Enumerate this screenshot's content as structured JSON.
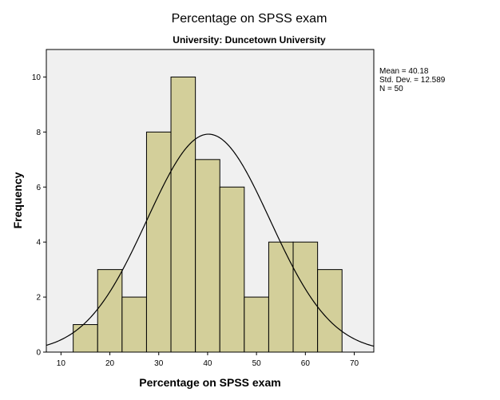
{
  "chart_data": {
    "type": "bar",
    "subtype": "histogram",
    "title": "Percentage on SPSS exam",
    "subtitle": "University: Duncetown University",
    "xlabel": "Percentage on SPSS exam",
    "ylabel": "Frequency",
    "xlim": [
      7,
      74
    ],
    "ylim": [
      0,
      11
    ],
    "x_ticks": [
      10,
      20,
      30,
      40,
      50,
      60,
      70
    ],
    "y_ticks": [
      0,
      2,
      4,
      6,
      8,
      10
    ],
    "bins": [
      {
        "start": 12.5,
        "end": 17.5,
        "count": 1
      },
      {
        "start": 17.5,
        "end": 22.5,
        "count": 3
      },
      {
        "start": 22.5,
        "end": 27.5,
        "count": 2
      },
      {
        "start": 27.5,
        "end": 32.5,
        "count": 8
      },
      {
        "start": 32.5,
        "end": 37.5,
        "count": 10
      },
      {
        "start": 37.5,
        "end": 42.5,
        "count": 7
      },
      {
        "start": 42.5,
        "end": 47.5,
        "count": 6
      },
      {
        "start": 47.5,
        "end": 52.5,
        "count": 2
      },
      {
        "start": 52.5,
        "end": 57.5,
        "count": 4
      },
      {
        "start": 57.5,
        "end": 62.5,
        "count": 4
      },
      {
        "start": 62.5,
        "end": 67.5,
        "count": 3
      }
    ],
    "normal_curve": {
      "mean": 40.18,
      "sd": 12.589,
      "n": 50,
      "bin_width": 5
    },
    "stats_lines": [
      "Mean = 40.18",
      "Std. Dev. = 12.589",
      "N = 50"
    ],
    "grid": false,
    "legend": "right",
    "colors": {
      "bar_fill": "#d3cf9a",
      "bar_stroke": "#000000",
      "plot_background": "#f0f0f0",
      "curve": "#000000"
    }
  }
}
